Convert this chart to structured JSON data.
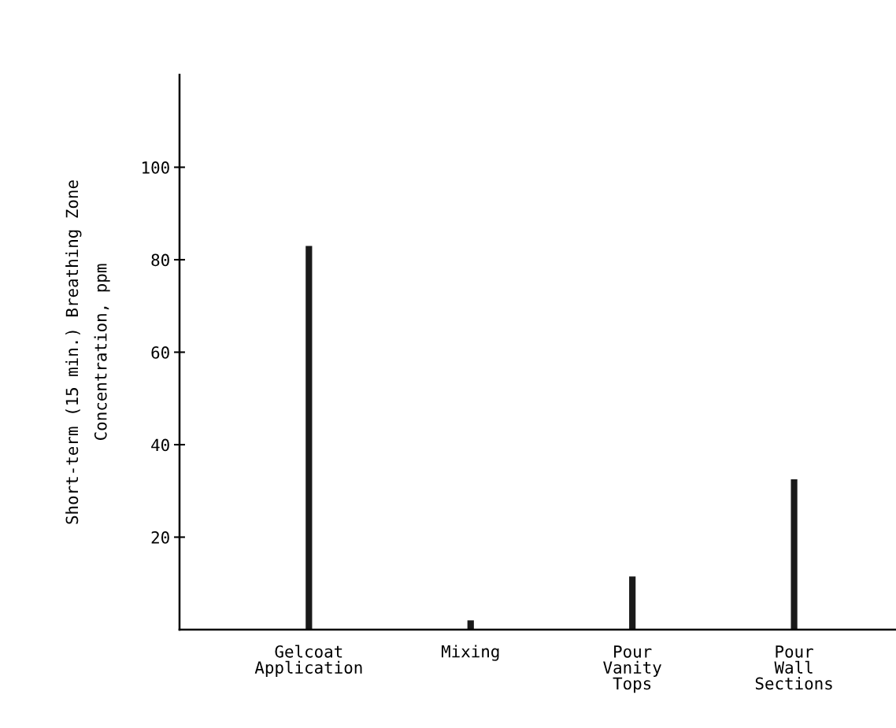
{
  "chart_data": {
    "type": "bar",
    "categories": [
      "Gelcoat\nApplication",
      "Mixing",
      "Pour\nVanity\nTops",
      "Pour\nWall\nSections"
    ],
    "values": [
      83,
      2,
      11.5,
      32.5
    ],
    "color": "#1a1a1a",
    "ylabel": "Short-term (15 min.) Breathing Zone\nConcentration, ppm",
    "ylim": [
      0,
      120
    ],
    "yticks": [
      20,
      40,
      60,
      80,
      100
    ],
    "grid": false
  }
}
